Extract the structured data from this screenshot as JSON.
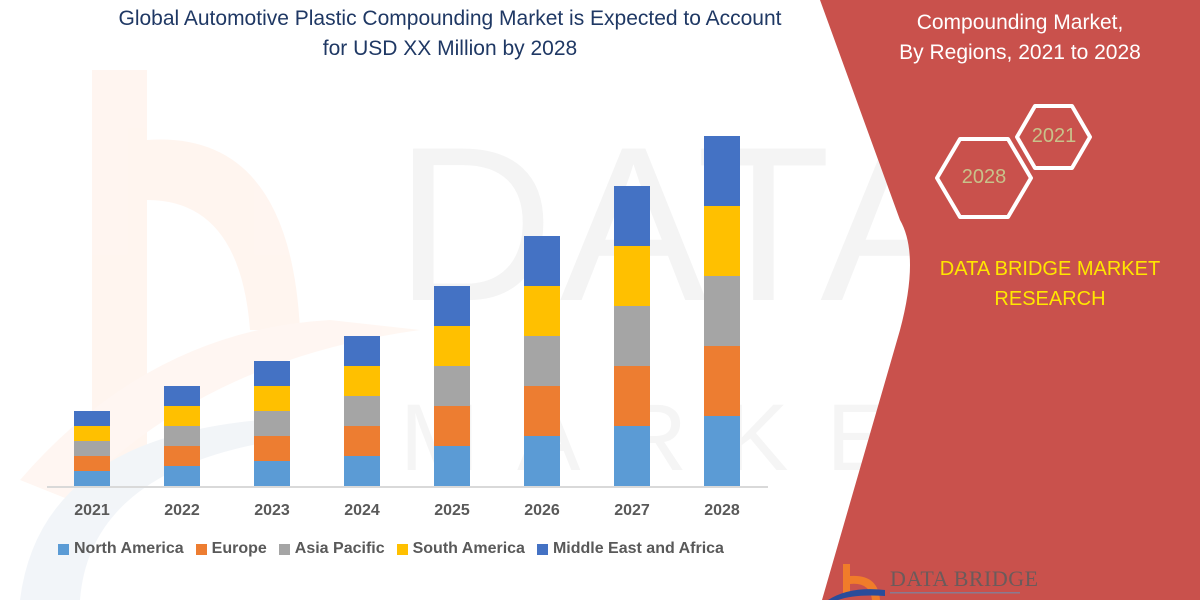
{
  "header": {
    "title_line1": "Global Automotive Plastic Compounding Market is Expected to Account",
    "title_line2": "for USD XX Million by 2028"
  },
  "side_panel": {
    "title_line1": "Compounding Market,",
    "title_line2": "By Regions, 2021 to 2028",
    "hex_2021": "2021",
    "hex_2028": "2028",
    "brand_line1": "DATA BRIDGE MARKET",
    "brand_line2": "RESEARCH",
    "logo_text": "DATA BRIDGE",
    "background_color": "#C9514C",
    "brand_color": "#FFE600"
  },
  "colors": {
    "north_america": "#5B9BD5",
    "europe": "#ED7D31",
    "asia_pacific": "#A5A5A5",
    "south_america": "#FFC000",
    "middle_east_africa": "#4472C4"
  },
  "legend": [
    {
      "label": "North America",
      "color": "#5B9BD5"
    },
    {
      "label": "Europe",
      "color": "#ED7D31"
    },
    {
      "label": "Asia Pacific",
      "color": "#A5A5A5"
    },
    {
      "label": "South America",
      "color": "#FFC000"
    },
    {
      "label": "Middle East and Africa",
      "color": "#4472C4"
    }
  ],
  "chart_data": {
    "type": "bar",
    "stacked": true,
    "title": "Global Automotive Plastic Compounding Market is Expected to Account for USD XX Million by 2028",
    "xlabel": "",
    "ylabel": "",
    "categories": [
      "2021",
      "2022",
      "2023",
      "2024",
      "2025",
      "2026",
      "2027",
      "2028"
    ],
    "series": [
      {
        "name": "North America",
        "color": "#5B9BD5",
        "values": [
          15,
          20,
          25,
          30,
          40,
          50,
          60,
          70
        ]
      },
      {
        "name": "Europe",
        "color": "#ED7D31",
        "values": [
          15,
          20,
          25,
          30,
          40,
          50,
          60,
          70
        ]
      },
      {
        "name": "Asia Pacific",
        "color": "#A5A5A5",
        "values": [
          15,
          20,
          25,
          30,
          40,
          50,
          60,
          70
        ]
      },
      {
        "name": "South America",
        "color": "#FFC000",
        "values": [
          15,
          20,
          25,
          30,
          40,
          50,
          60,
          70
        ]
      },
      {
        "name": "Middle East and Africa",
        "color": "#4472C4",
        "values": [
          15,
          20,
          25,
          30,
          40,
          50,
          60,
          70
        ]
      }
    ],
    "ylim": [
      0,
      360
    ],
    "grid": false,
    "y_axis_visible": false,
    "legend_position": "bottom"
  }
}
